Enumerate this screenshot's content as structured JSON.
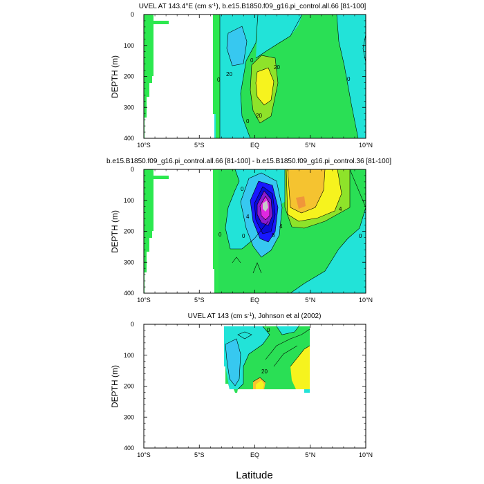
{
  "colors": {
    "c_cyan": "#22e3d8",
    "c_lightblue": "#37c8f0",
    "c_green": "#2adf55",
    "c_brightgreen": "#2ce84f",
    "c_lime": "#8ee32a",
    "c_yellow": "#f6f31e",
    "c_orange": "#f5c330",
    "c_darkorange": "#f0963a",
    "c_blue": "#1818ff",
    "c_navy": "#0a0ad8",
    "c_purple": "#8a1ad0",
    "c_magenta": "#e028e0",
    "c_gray": "#c8c8c8"
  },
  "xlabel": "Latitude",
  "chart_data": [
    {
      "type": "contour",
      "title": "UVEL AT 143.4°E (cm s⁻¹), b.e15.B1850.f09_g16.pi_control.all.66 [81-100]",
      "title_parts": [
        "UVEL AT 143.4°E (cm s",
        "-1",
        "), b.e15.B1850.f09_g16.pi_control.all.66 [81-100]"
      ],
      "ylabel": "DEPTH (m)",
      "xlim": [
        -10,
        10
      ],
      "ylim": [
        400,
        0
      ],
      "x_ticks": [
        "10°S",
        "5°S",
        "EQ",
        "5°N",
        "10°N"
      ],
      "y_ticks": [
        "0",
        "100",
        "200",
        "300",
        "400"
      ],
      "contour_labels": [
        "20",
        "20",
        "20",
        "0",
        "0",
        "0",
        "0"
      ]
    },
    {
      "type": "contour",
      "title": "b.e15.B1850.f09_g16.pi_control.all.66 [81-100] - b.e15.B1850.f09_g16.pi_control.36 [81-100]",
      "ylabel": "DEPTH (m)",
      "xlim": [
        -10,
        10
      ],
      "ylim": [
        400,
        0
      ],
      "x_ticks": [
        "10°S",
        "5°S",
        "EQ",
        "5°N",
        "10°N"
      ],
      "y_ticks": [
        "0",
        "100",
        "200",
        "300",
        "400"
      ],
      "contour_labels": [
        "4",
        "4",
        "4",
        "0",
        "0",
        "0",
        "8",
        "0"
      ]
    },
    {
      "type": "contour",
      "title": "UVEL AT 143 (cm s⁻¹), Johnson et al (2002)",
      "title_parts": [
        "UVEL AT 143 (cm s",
        "-1",
        "), Johnson et al (2002)"
      ],
      "ylabel": "DEPTH (m)",
      "xlim": [
        -10,
        10
      ],
      "ylim": [
        400,
        0
      ],
      "x_ticks": [
        "10°S",
        "5°S",
        "EQ",
        "5°N",
        "10°N"
      ],
      "y_ticks": [
        "0",
        "100",
        "200",
        "300",
        "400"
      ],
      "contour_labels": [
        "20",
        "0"
      ]
    }
  ]
}
